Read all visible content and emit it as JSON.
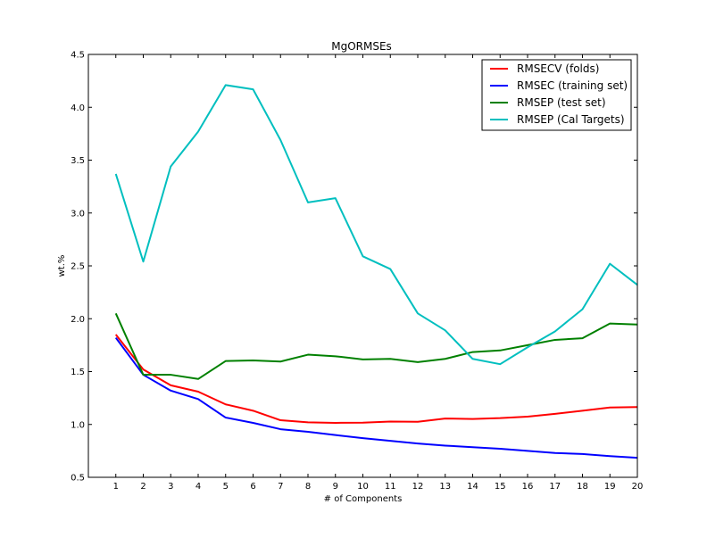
{
  "chart_data": {
    "type": "line",
    "title": "MgORMSEs",
    "xlabel": "# of Components",
    "ylabel": "wt.%",
    "xlim": [
      0,
      20
    ],
    "ylim": [
      0.5,
      4.5
    ],
    "xticks": [
      1,
      2,
      3,
      4,
      5,
      6,
      7,
      8,
      9,
      10,
      11,
      12,
      13,
      14,
      15,
      16,
      17,
      18,
      19,
      20
    ],
    "yticks": [
      "0.5",
      "1.0",
      "1.5",
      "2.0",
      "2.5",
      "3.0",
      "3.5",
      "4.0",
      "4.5"
    ],
    "grid": false,
    "legend_position": "top-right",
    "x": [
      1,
      2,
      3,
      4,
      5,
      6,
      7,
      8,
      9,
      10,
      11,
      12,
      13,
      14,
      15,
      16,
      17,
      18,
      19,
      20
    ],
    "series": [
      {
        "name": "RMSECV (folds)",
        "color": "#ff0000",
        "values": [
          1.85,
          1.52,
          1.37,
          1.31,
          1.19,
          1.13,
          1.04,
          1.02,
          1.015,
          1.017,
          1.027,
          1.025,
          1.056,
          1.052,
          1.06,
          1.074,
          1.1,
          1.13,
          1.16,
          1.165
        ]
      },
      {
        "name": "RMSEC (training set)",
        "color": "#0000ff",
        "values": [
          1.82,
          1.47,
          1.32,
          1.24,
          1.065,
          1.015,
          0.955,
          0.93,
          0.9,
          0.87,
          0.845,
          0.82,
          0.8,
          0.785,
          0.77,
          0.75,
          0.73,
          0.72,
          0.7,
          0.685
        ]
      },
      {
        "name": "RMSEP (test set)",
        "color": "#008000",
        "values": [
          2.05,
          1.47,
          1.47,
          1.43,
          1.6,
          1.605,
          1.595,
          1.66,
          1.645,
          1.615,
          1.62,
          1.59,
          1.62,
          1.685,
          1.7,
          1.75,
          1.8,
          1.815,
          1.955,
          1.945
        ]
      },
      {
        "name": "RMSEP (Cal Targets)",
        "color": "#00bfbf",
        "values": [
          3.37,
          2.54,
          3.44,
          3.77,
          4.21,
          4.17,
          3.69,
          3.1,
          3.14,
          2.59,
          2.47,
          2.05,
          1.89,
          1.62,
          1.57,
          1.73,
          1.88,
          2.09,
          2.52,
          2.32
        ]
      }
    ]
  }
}
